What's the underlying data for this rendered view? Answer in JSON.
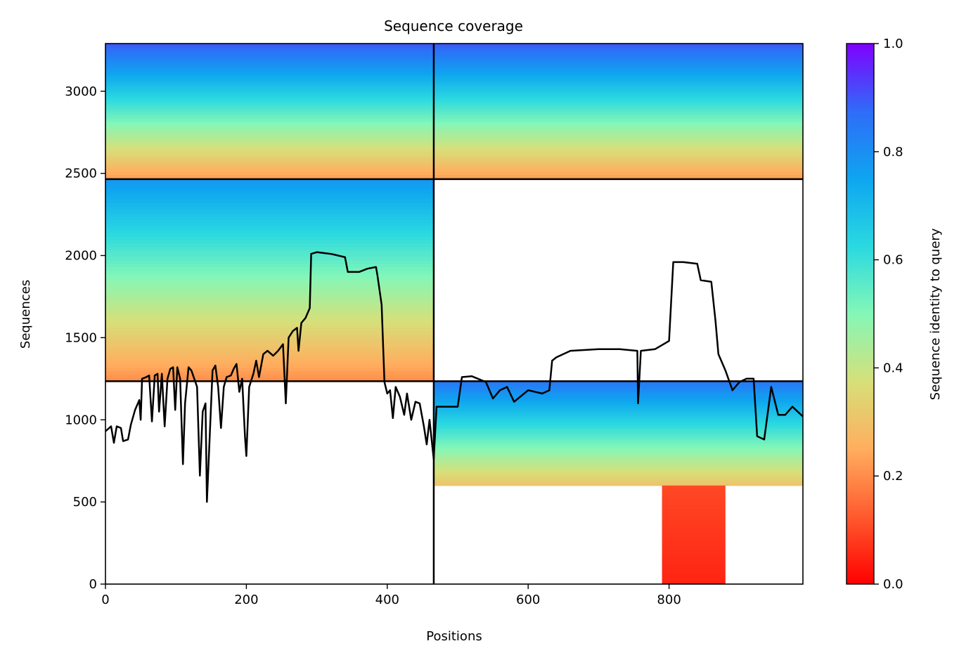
{
  "chart_data": {
    "type": "heatmap",
    "title": "Sequence coverage",
    "xlabel": "Positions",
    "ylabel": "Sequences",
    "xlim": [
      0,
      990
    ],
    "ylim": [
      0,
      3290
    ],
    "xticks": [
      0,
      200,
      400,
      600,
      800
    ],
    "yticks": [
      0,
      500,
      1000,
      1500,
      2000,
      2500,
      3000
    ],
    "domain_boundary_x": 466,
    "domain_boundary_y": [
      1235,
      2465
    ],
    "colorbar": {
      "label": "Sequence identity to query",
      "range": [
        0,
        1
      ],
      "ticks": [
        "0.0",
        "0.2",
        "0.4",
        "0.6",
        "0.8",
        "1.0"
      ],
      "colormap": "rainbow_r",
      "colors": [
        "#ff0000",
        "#ff5a2e",
        "#ffae5e",
        "#d6e07a",
        "#84f7b7",
        "#2ad9e0",
        "#0ea5f0",
        "#2f6cf8",
        "#7f00ff"
      ]
    },
    "blocks": [
      {
        "name": "upper-left",
        "x": [
          0,
          466
        ],
        "y": [
          2465,
          3290
        ],
        "identity_range": [
          0.22,
          0.9
        ]
      },
      {
        "name": "upper-right",
        "x": [
          466,
          990
        ],
        "y": [
          2465,
          3290
        ],
        "identity_range": [
          0.22,
          0.9
        ]
      },
      {
        "name": "middle-left",
        "x": [
          0,
          466
        ],
        "y": [
          1235,
          2465
        ],
        "identity_range": [
          0.2,
          0.78
        ]
      },
      {
        "name": "lower-right",
        "x": [
          466,
          990
        ],
        "y": [
          600,
          1235
        ],
        "identity_range": [
          0.3,
          0.85
        ]
      },
      {
        "name": "lower-right-tail",
        "x": [
          790,
          880
        ],
        "y": [
          0,
          600
        ],
        "identity_range": [
          0.05,
          0.1
        ]
      }
    ],
    "series": [
      {
        "values": [
          [
            0,
            930
          ],
          [
            8,
            960
          ],
          [
            12,
            860
          ],
          [
            16,
            960
          ],
          [
            22,
            950
          ],
          [
            25,
            870
          ],
          [
            32,
            880
          ],
          [
            36,
            970
          ],
          [
            42,
            1060
          ],
          [
            48,
            1120
          ],
          [
            50,
            1000
          ],
          [
            52,
            1250
          ],
          [
            58,
            1260
          ],
          [
            62,
            1270
          ],
          [
            66,
            990
          ],
          [
            70,
            1270
          ],
          [
            74,
            1280
          ],
          [
            76,
            1050
          ],
          [
            80,
            1280
          ],
          [
            84,
            960
          ],
          [
            88,
            1250
          ],
          [
            92,
            1310
          ],
          [
            96,
            1320
          ],
          [
            99,
            1060
          ],
          [
            102,
            1320
          ],
          [
            106,
            1250
          ],
          [
            110,
            730
          ],
          [
            113,
            1100
          ],
          [
            118,
            1320
          ],
          [
            122,
            1300
          ],
          [
            126,
            1250
          ],
          [
            130,
            1200
          ],
          [
            134,
            660
          ],
          [
            138,
            1050
          ],
          [
            142,
            1100
          ],
          [
            144,
            500
          ],
          [
            148,
            900
          ],
          [
            152,
            1300
          ],
          [
            156,
            1330
          ],
          [
            160,
            1200
          ],
          [
            164,
            950
          ],
          [
            168,
            1200
          ],
          [
            172,
            1260
          ],
          [
            178,
            1270
          ],
          [
            182,
            1310
          ],
          [
            186,
            1340
          ],
          [
            190,
            1170
          ],
          [
            194,
            1250
          ],
          [
            198,
            900
          ],
          [
            200,
            780
          ],
          [
            204,
            1200
          ],
          [
            210,
            1280
          ],
          [
            214,
            1360
          ],
          [
            218,
            1260
          ],
          [
            224,
            1400
          ],
          [
            230,
            1420
          ],
          [
            238,
            1390
          ],
          [
            245,
            1420
          ],
          [
            252,
            1460
          ],
          [
            256,
            1100
          ],
          [
            260,
            1500
          ],
          [
            266,
            1540
          ],
          [
            272,
            1560
          ],
          [
            274,
            1420
          ],
          [
            278,
            1590
          ],
          [
            284,
            1620
          ],
          [
            290,
            1680
          ],
          [
            292,
            2010
          ],
          [
            300,
            2020
          ],
          [
            320,
            2010
          ],
          [
            340,
            1990
          ],
          [
            344,
            1900
          ],
          [
            360,
            1900
          ],
          [
            372,
            1920
          ],
          [
            384,
            1930
          ],
          [
            386,
            1880
          ],
          [
            392,
            1700
          ],
          [
            396,
            1230
          ],
          [
            400,
            1160
          ],
          [
            404,
            1180
          ],
          [
            408,
            1010
          ],
          [
            412,
            1200
          ],
          [
            418,
            1140
          ],
          [
            424,
            1030
          ],
          [
            428,
            1160
          ],
          [
            434,
            1000
          ],
          [
            440,
            1110
          ],
          [
            446,
            1100
          ],
          [
            452,
            960
          ],
          [
            456,
            850
          ],
          [
            460,
            1000
          ],
          [
            466,
            760
          ],
          [
            470,
            1080
          ],
          [
            500,
            1080
          ],
          [
            506,
            1260
          ],
          [
            520,
            1265
          ],
          [
            540,
            1230
          ],
          [
            550,
            1130
          ],
          [
            560,
            1180
          ],
          [
            570,
            1200
          ],
          [
            580,
            1110
          ],
          [
            600,
            1180
          ],
          [
            620,
            1160
          ],
          [
            630,
            1180
          ],
          [
            634,
            1360
          ],
          [
            640,
            1380
          ],
          [
            650,
            1400
          ],
          [
            660,
            1420
          ],
          [
            700,
            1430
          ],
          [
            730,
            1430
          ],
          [
            755,
            1420
          ],
          [
            756,
            1100
          ],
          [
            760,
            1420
          ],
          [
            780,
            1430
          ],
          [
            800,
            1480
          ],
          [
            806,
            1960
          ],
          [
            820,
            1960
          ],
          [
            840,
            1950
          ],
          [
            845,
            1850
          ],
          [
            860,
            1840
          ],
          [
            866,
            1600
          ],
          [
            870,
            1400
          ],
          [
            880,
            1300
          ],
          [
            890,
            1180
          ],
          [
            900,
            1230
          ],
          [
            910,
            1250
          ],
          [
            920,
            1250
          ],
          [
            925,
            900
          ],
          [
            935,
            880
          ],
          [
            945,
            1200
          ],
          [
            955,
            1030
          ],
          [
            965,
            1030
          ],
          [
            975,
            1080
          ],
          [
            990,
            1020
          ]
        ]
      }
    ]
  }
}
